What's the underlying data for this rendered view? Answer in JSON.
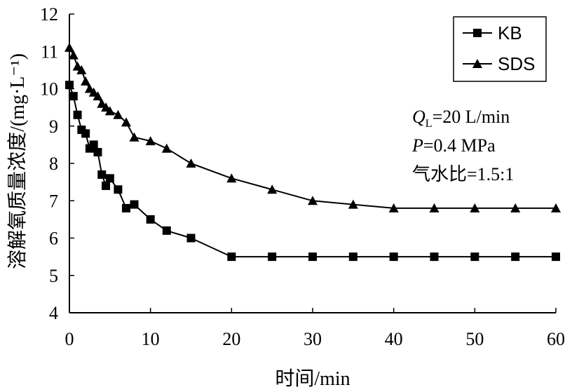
{
  "chart_data": {
    "type": "line",
    "xlabel": "时间/min",
    "ylabel": "溶解氧质量浓度/(mg·L⁻¹)",
    "xlim": [
      0,
      60
    ],
    "ylim": [
      4,
      12
    ],
    "xticks": [
      0,
      10,
      20,
      30,
      40,
      50,
      60
    ],
    "yticks": [
      4,
      5,
      6,
      7,
      8,
      9,
      10,
      11,
      12
    ],
    "grid": false,
    "legend": "top-right",
    "series": [
      {
        "name": "KB",
        "marker": "square",
        "color": "#000000",
        "x": [
          0,
          0.5,
          1,
          1.5,
          2,
          2.5,
          3,
          3.5,
          4,
          4.5,
          5,
          6,
          7,
          8,
          10,
          12,
          15,
          20,
          25,
          30,
          35,
          40,
          45,
          50,
          55,
          60
        ],
        "y": [
          10.1,
          9.8,
          9.3,
          8.9,
          8.8,
          8.4,
          8.5,
          8.3,
          7.7,
          7.4,
          7.6,
          7.3,
          6.8,
          6.9,
          6.5,
          6.2,
          6.0,
          5.5,
          5.5,
          5.5,
          5.5,
          5.5,
          5.5,
          5.5,
          5.5,
          5.5
        ]
      },
      {
        "name": "SDS",
        "marker": "triangle",
        "color": "#000000",
        "x": [
          0,
          0.5,
          1,
          1.5,
          2,
          2.5,
          3,
          3.5,
          4,
          4.5,
          5,
          6,
          7,
          8,
          10,
          12,
          15,
          20,
          25,
          30,
          35,
          40,
          45,
          50,
          55,
          60
        ],
        "y": [
          11.1,
          10.9,
          10.6,
          10.5,
          10.2,
          10.0,
          9.9,
          9.8,
          9.6,
          9.5,
          9.4,
          9.3,
          9.1,
          8.7,
          8.6,
          8.4,
          8.0,
          7.6,
          7.3,
          7.0,
          6.9,
          6.8,
          6.8,
          6.8,
          6.8,
          6.8
        ]
      }
    ],
    "annotations": {
      "line1_var": "Q",
      "line1_sub": "L",
      "line1_rest": "=20 L/min",
      "line2_var": "P",
      "line2_rest": "=0.4 MPa",
      "line3": "气水比=1.5:1"
    }
  }
}
